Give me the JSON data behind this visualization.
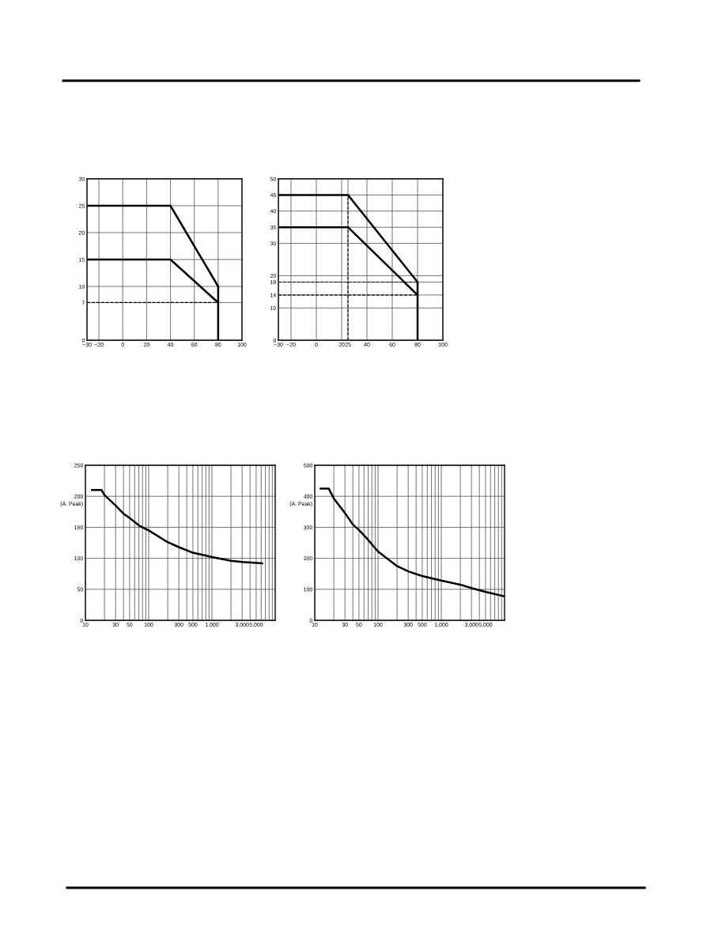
{
  "chart_data": [
    {
      "type": "line",
      "line_style": "solid",
      "grid": true,
      "series": [
        {
          "color": "#000000",
          "x": [
            -30,
            40,
            80,
            80
          ],
          "values": [
            25,
            25,
            10,
            0
          ]
        },
        {
          "color": "#000000",
          "x": [
            -30,
            40,
            80
          ],
          "values": [
            15,
            15,
            7
          ]
        }
      ],
      "xlim": [
        -30,
        100
      ],
      "xticks": [
        {
          "value": -30,
          "label": "−30"
        },
        {
          "value": -20,
          "label": "−20"
        },
        0,
        20,
        40,
        60,
        80,
        100
      ],
      "ylim": [
        0,
        30
      ],
      "yticks": [
        0,
        7,
        10,
        15,
        20,
        25,
        30
      ],
      "ref_lines": [
        {
          "axis": "y",
          "value": 7,
          "line_style": "dashed",
          "color": "#000000"
        }
      ]
    },
    {
      "type": "line",
      "line_style": "solid",
      "grid": true,
      "series": [
        {
          "color": "#000000",
          "x": [
            -30,
            25,
            80,
            80
          ],
          "values": [
            45,
            45,
            18,
            0
          ]
        },
        {
          "color": "#000000",
          "x": [
            -30,
            25,
            80
          ],
          "values": [
            35,
            35,
            14
          ]
        },
        {
          "color": "#000000",
          "line_style": "dashed",
          "x": [
            -30,
            80
          ],
          "values": [
            18,
            18
          ]
        },
        {
          "color": "#000000",
          "line_style": "dashed",
          "x": [
            -30,
            80
          ],
          "values": [
            14,
            14
          ]
        },
        {
          "color": "#000000",
          "line_style": "dashed",
          "x": [
            25,
            25
          ],
          "values": [
            0,
            45
          ]
        }
      ],
      "xlim": [
        -30,
        100
      ],
      "xticks": [
        {
          "value": -30,
          "label": "−30"
        },
        {
          "value": -20,
          "label": "−20"
        },
        0,
        20,
        25,
        40,
        60,
        80,
        100
      ],
      "ylim": [
        0,
        50
      ],
      "yticks": [
        0,
        10,
        14,
        18,
        20,
        30,
        35,
        40,
        45,
        50
      ]
    },
    {
      "type": "line",
      "line_style": "solid",
      "grid": true,
      "log": "x",
      "ylabel": "(A. Peak)",
      "series": [
        {
          "color": "#000000",
          "x": [
            12.7,
            18,
            20,
            30,
            40,
            50,
            70,
            100,
            200,
            300,
            500,
            1000,
            2000,
            3000,
            6200
          ],
          "values": [
            210,
            210,
            202,
            185,
            172,
            165,
            153,
            145,
            126,
            118,
            109,
            102,
            96,
            94,
            92
          ]
        }
      ],
      "xlim": [
        10,
        10000
      ],
      "xticks": [
        10,
        {
          "value": 20,
          "label": null
        },
        30,
        {
          "value": 40,
          "label": null
        },
        50,
        {
          "value": 60,
          "label": null
        },
        {
          "value": 70,
          "label": null
        },
        {
          "value": 80,
          "label": null
        },
        {
          "value": 90,
          "label": null
        },
        100,
        {
          "value": 200,
          "label": null
        },
        300,
        {
          "value": 400,
          "label": null
        },
        500,
        {
          "value": 600,
          "label": null
        },
        {
          "value": 700,
          "label": null
        },
        {
          "value": 800,
          "label": null
        },
        {
          "value": 900,
          "label": null
        },
        {
          "value": 1000,
          "label": "1,000"
        },
        {
          "value": 2000,
          "label": null
        },
        {
          "value": 3000,
          "label": "3,000"
        },
        {
          "value": 4000,
          "label": null
        },
        {
          "value": 5000,
          "label": "5,000"
        },
        {
          "value": 6000,
          "label": null
        },
        {
          "value": 7000,
          "label": null
        },
        {
          "value": 8000,
          "label": null
        },
        {
          "value": 9000,
          "label": null
        }
      ],
      "ylim": [
        0,
        250
      ],
      "yticks": [
        0,
        50,
        100,
        150,
        200,
        250
      ]
    },
    {
      "type": "line",
      "line_style": "solid",
      "grid": true,
      "log": "x",
      "ylabel": "(A. Peak)",
      "series": [
        {
          "color": "#000000",
          "x": [
            12.4,
            16.6,
            20,
            30,
            40,
            50,
            66,
            100,
            200,
            300,
            500,
            1000,
            2000,
            3000,
            5000,
            10000
          ],
          "values": [
            425,
            425,
            393,
            346,
            309,
            291,
            265,
            222,
            175,
            158,
            143,
            128,
            115,
            104,
            92,
            77
          ]
        }
      ],
      "xlim": [
        10,
        10000
      ],
      "xticks": [
        10,
        {
          "value": 20,
          "label": null
        },
        30,
        {
          "value": 40,
          "label": null
        },
        50,
        {
          "value": 60,
          "label": null
        },
        {
          "value": 70,
          "label": null
        },
        {
          "value": 80,
          "label": null
        },
        {
          "value": 90,
          "label": null
        },
        100,
        {
          "value": 200,
          "label": null
        },
        300,
        {
          "value": 400,
          "label": null
        },
        500,
        {
          "value": 600,
          "label": null
        },
        {
          "value": 700,
          "label": null
        },
        {
          "value": 800,
          "label": null
        },
        {
          "value": 900,
          "label": null
        },
        {
          "value": 1000,
          "label": "1,000"
        },
        {
          "value": 2000,
          "label": null
        },
        {
          "value": 3000,
          "label": "3,000"
        },
        {
          "value": 4000,
          "label": null
        },
        {
          "value": 5000,
          "label": "5,000"
        },
        {
          "value": 6000,
          "label": null
        },
        {
          "value": 7000,
          "label": null
        },
        {
          "value": 8000,
          "label": null
        },
        {
          "value": 9000,
          "label": null
        }
      ],
      "ylim": [
        0,
        500
      ],
      "yticks": [
        0,
        100,
        200,
        300,
        400,
        500
      ]
    }
  ]
}
